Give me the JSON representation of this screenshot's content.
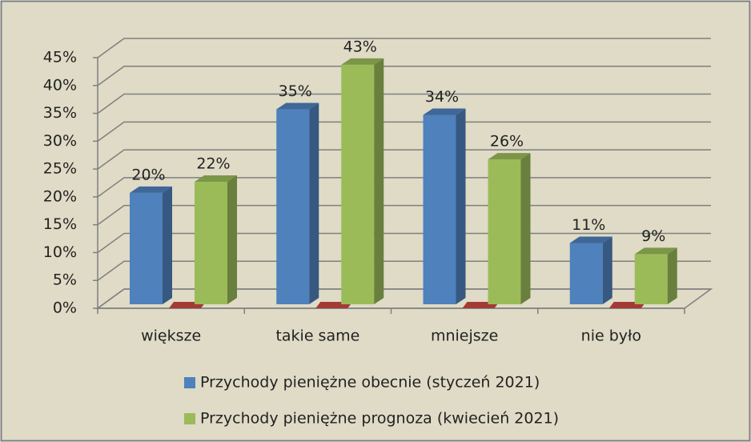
{
  "chart_data": {
    "type": "bar3d",
    "categories": [
      "większe",
      "takie same",
      "mniejsze",
      "nie było"
    ],
    "series": [
      {
        "name": "Przychody pieniężne obecnie (styczeń 2021)",
        "color": "#4f81bd",
        "values": [
          20,
          35,
          34,
          11
        ],
        "value_labels": [
          "20%",
          "35%",
          "34%",
          "11%"
        ]
      },
      {
        "name": "Przychody pieniężne prognoza (kwiecień 2021)",
        "color": "#9bbb59",
        "values": [
          22,
          43,
          26,
          9
        ],
        "value_labels": [
          "22%",
          "43%",
          "26%",
          "9%"
        ]
      }
    ],
    "ylim": [
      0,
      45
    ],
    "yticks": [
      {
        "value": 0,
        "label": "0%"
      },
      {
        "value": 5,
        "label": "5%"
      },
      {
        "value": 10,
        "label": "10%"
      },
      {
        "value": 15,
        "label": "15%"
      },
      {
        "value": 20,
        "label": "20%"
      },
      {
        "value": 25,
        "label": "25%"
      },
      {
        "value": 30,
        "label": "30%"
      },
      {
        "value": 35,
        "label": "35%"
      },
      {
        "value": 40,
        "label": "40%"
      },
      {
        "value": 45,
        "label": "45%"
      }
    ],
    "grid": true
  }
}
